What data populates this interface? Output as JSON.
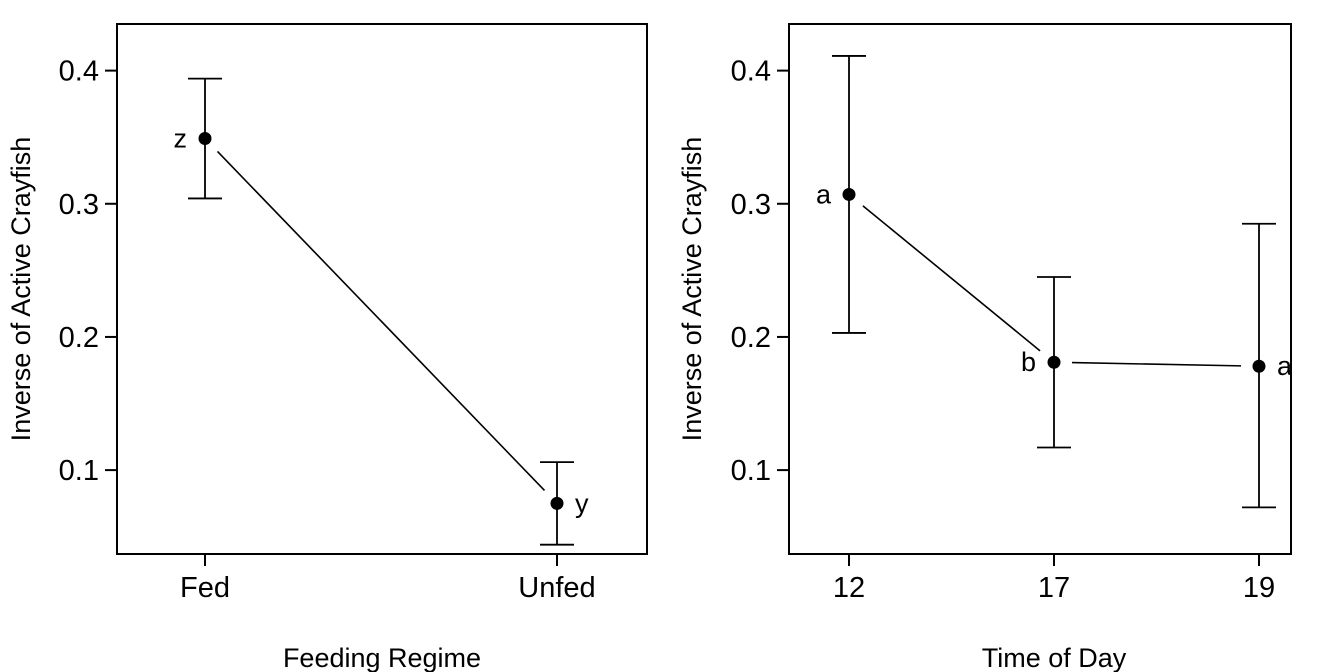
{
  "chart_data": [
    {
      "type": "scatter",
      "xlabel": "Feeding Regime",
      "ylabel": "Inverse of Active Crayfish",
      "categories": [
        "Fed",
        "Unfed"
      ],
      "values": [
        0.349,
        0.075
      ],
      "error_low": [
        0.304,
        0.044
      ],
      "error_high": [
        0.394,
        0.106
      ],
      "labels": [
        "z",
        "y"
      ],
      "label_side": [
        "left",
        "right"
      ],
      "ylim": [
        0.037,
        0.435
      ],
      "yticks": [
        0.1,
        0.2,
        0.3,
        0.4
      ],
      "ytick_labels": [
        "0.1",
        "0.2",
        "0.3",
        "0.4"
      ],
      "grid": false
    },
    {
      "type": "scatter",
      "xlabel": "Time of Day",
      "ylabel": "Inverse of Active Crayfish",
      "categories": [
        "12",
        "17",
        "19"
      ],
      "values": [
        0.307,
        0.181,
        0.178
      ],
      "error_low": [
        0.203,
        0.117,
        0.072
      ],
      "error_high": [
        0.411,
        0.245,
        0.285
      ],
      "labels": [
        "a",
        "b",
        "a"
      ],
      "label_side": [
        "left",
        "left",
        "right"
      ],
      "ylim": [
        0.037,
        0.435
      ],
      "yticks": [
        0.1,
        0.2,
        0.3,
        0.4
      ],
      "ytick_labels": [
        "0.1",
        "0.2",
        "0.3",
        "0.4"
      ],
      "grid": false
    }
  ]
}
